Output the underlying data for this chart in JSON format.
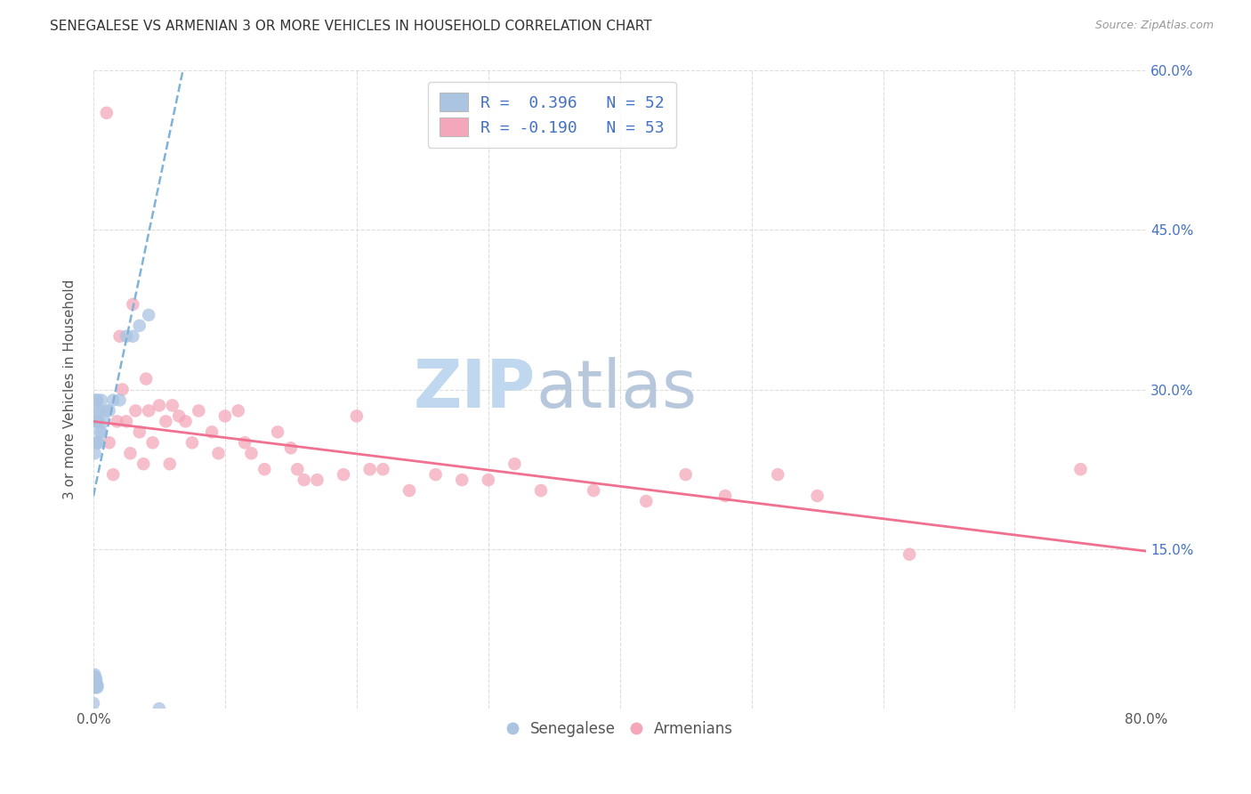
{
  "title": "SENEGALESE VS ARMENIAN 3 OR MORE VEHICLES IN HOUSEHOLD CORRELATION CHART",
  "source": "Source: ZipAtlas.com",
  "ylabel": "3 or more Vehicles in Household",
  "xlim": [
    0.0,
    0.8
  ],
  "ylim": [
    0.0,
    0.6
  ],
  "color_senegalese": "#aac4e2",
  "color_armenian": "#f4a7b9",
  "color_senegalese_line": "#7fb3d9",
  "color_armenian_line": "#f07090",
  "color_blue_text": "#4472c4",
  "watermark_zip_color": "#c8dff0",
  "watermark_atlas_color": "#c0cce0",
  "background_color": "#ffffff",
  "grid_color": "#dddddd",
  "senegalese_x": [
    0.0,
    0.0,
    0.0,
    0.0,
    0.0,
    0.0,
    0.0,
    0.0,
    0.0,
    0.0,
    0.001,
    0.001,
    0.001,
    0.001,
    0.001,
    0.001,
    0.001,
    0.001,
    0.001,
    0.001,
    0.001,
    0.001,
    0.002,
    0.002,
    0.002,
    0.002,
    0.002,
    0.002,
    0.002,
    0.002,
    0.003,
    0.003,
    0.003,
    0.003,
    0.003,
    0.003,
    0.004,
    0.004,
    0.005,
    0.005,
    0.006,
    0.006,
    0.008,
    0.01,
    0.012,
    0.015,
    0.02,
    0.025,
    0.03,
    0.035,
    0.042,
    0.05
  ],
  "senegalese_y": [
    0.005,
    0.02,
    0.022,
    0.024,
    0.025,
    0.026,
    0.027,
    0.028,
    0.029,
    0.03,
    0.02,
    0.022,
    0.024,
    0.025,
    0.026,
    0.027,
    0.028,
    0.029,
    0.03,
    0.032,
    0.24,
    0.27,
    0.02,
    0.022,
    0.024,
    0.026,
    0.028,
    0.25,
    0.27,
    0.29,
    0.02,
    0.022,
    0.25,
    0.27,
    0.28,
    0.29,
    0.25,
    0.27,
    0.26,
    0.28,
    0.26,
    0.29,
    0.27,
    0.28,
    0.28,
    0.29,
    0.29,
    0.35,
    0.35,
    0.36,
    0.37,
    0.0
  ],
  "armenian_x": [
    0.01,
    0.012,
    0.015,
    0.018,
    0.02,
    0.022,
    0.025,
    0.028,
    0.03,
    0.032,
    0.035,
    0.038,
    0.04,
    0.042,
    0.045,
    0.05,
    0.055,
    0.058,
    0.06,
    0.065,
    0.07,
    0.075,
    0.08,
    0.09,
    0.095,
    0.1,
    0.11,
    0.115,
    0.12,
    0.13,
    0.14,
    0.15,
    0.155,
    0.16,
    0.17,
    0.19,
    0.2,
    0.21,
    0.22,
    0.24,
    0.26,
    0.28,
    0.3,
    0.32,
    0.34,
    0.38,
    0.42,
    0.45,
    0.48,
    0.52,
    0.55,
    0.62,
    0.75
  ],
  "armenian_y": [
    0.56,
    0.25,
    0.22,
    0.27,
    0.35,
    0.3,
    0.27,
    0.24,
    0.38,
    0.28,
    0.26,
    0.23,
    0.31,
    0.28,
    0.25,
    0.285,
    0.27,
    0.23,
    0.285,
    0.275,
    0.27,
    0.25,
    0.28,
    0.26,
    0.24,
    0.275,
    0.28,
    0.25,
    0.24,
    0.225,
    0.26,
    0.245,
    0.225,
    0.215,
    0.215,
    0.22,
    0.275,
    0.225,
    0.225,
    0.205,
    0.22,
    0.215,
    0.215,
    0.23,
    0.205,
    0.205,
    0.195,
    0.22,
    0.2,
    0.22,
    0.2,
    0.145,
    0.225
  ],
  "sen_trend_x0": 0.0,
  "sen_trend_y0": 0.2,
  "sen_trend_x1": 0.068,
  "sen_trend_y1": 0.6,
  "arm_trend_x0": 0.0,
  "arm_trend_y0": 0.27,
  "arm_trend_x1": 0.8,
  "arm_trend_y1": 0.148
}
